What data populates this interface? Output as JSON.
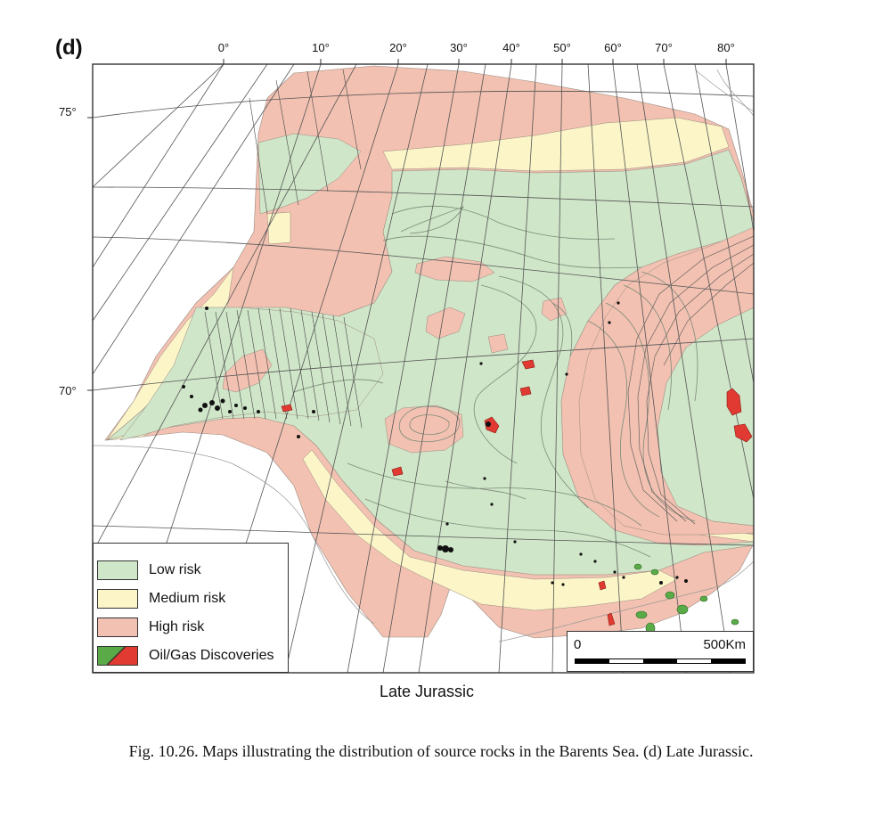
{
  "panel_label": "(d)",
  "longitude_labels": [
    "0°",
    "10°",
    "20°",
    "30°",
    "40°",
    "50°",
    "60°",
    "70°",
    "80°"
  ],
  "latitude_labels": [
    "75°",
    "70°"
  ],
  "map_title": "Late Jurassic",
  "caption": "Fig. 10.26. Maps illustrating the distribution of source rocks in the Barents Sea. (d) Late Jurassic.",
  "legend": {
    "items": [
      {
        "label": "Low risk",
        "color": "#cfe6c8"
      },
      {
        "label": "Medium risk",
        "color": "#fbf5c8"
      },
      {
        "label": "High risk",
        "color": "#f2c1b1"
      },
      {
        "label": "Oil/Gas Discoveries",
        "color": "#e03a32",
        "color2": "#5aaa48"
      }
    ]
  },
  "scale_bar": {
    "start_label": "0",
    "end_label": "500Km"
  },
  "colors": {
    "low_risk": "#cfe6c8",
    "medium_risk": "#fbf5c8",
    "high_risk": "#f2c1b1",
    "oil": "#e03a32",
    "gas": "#5aaa48",
    "grid": "#555555"
  }
}
